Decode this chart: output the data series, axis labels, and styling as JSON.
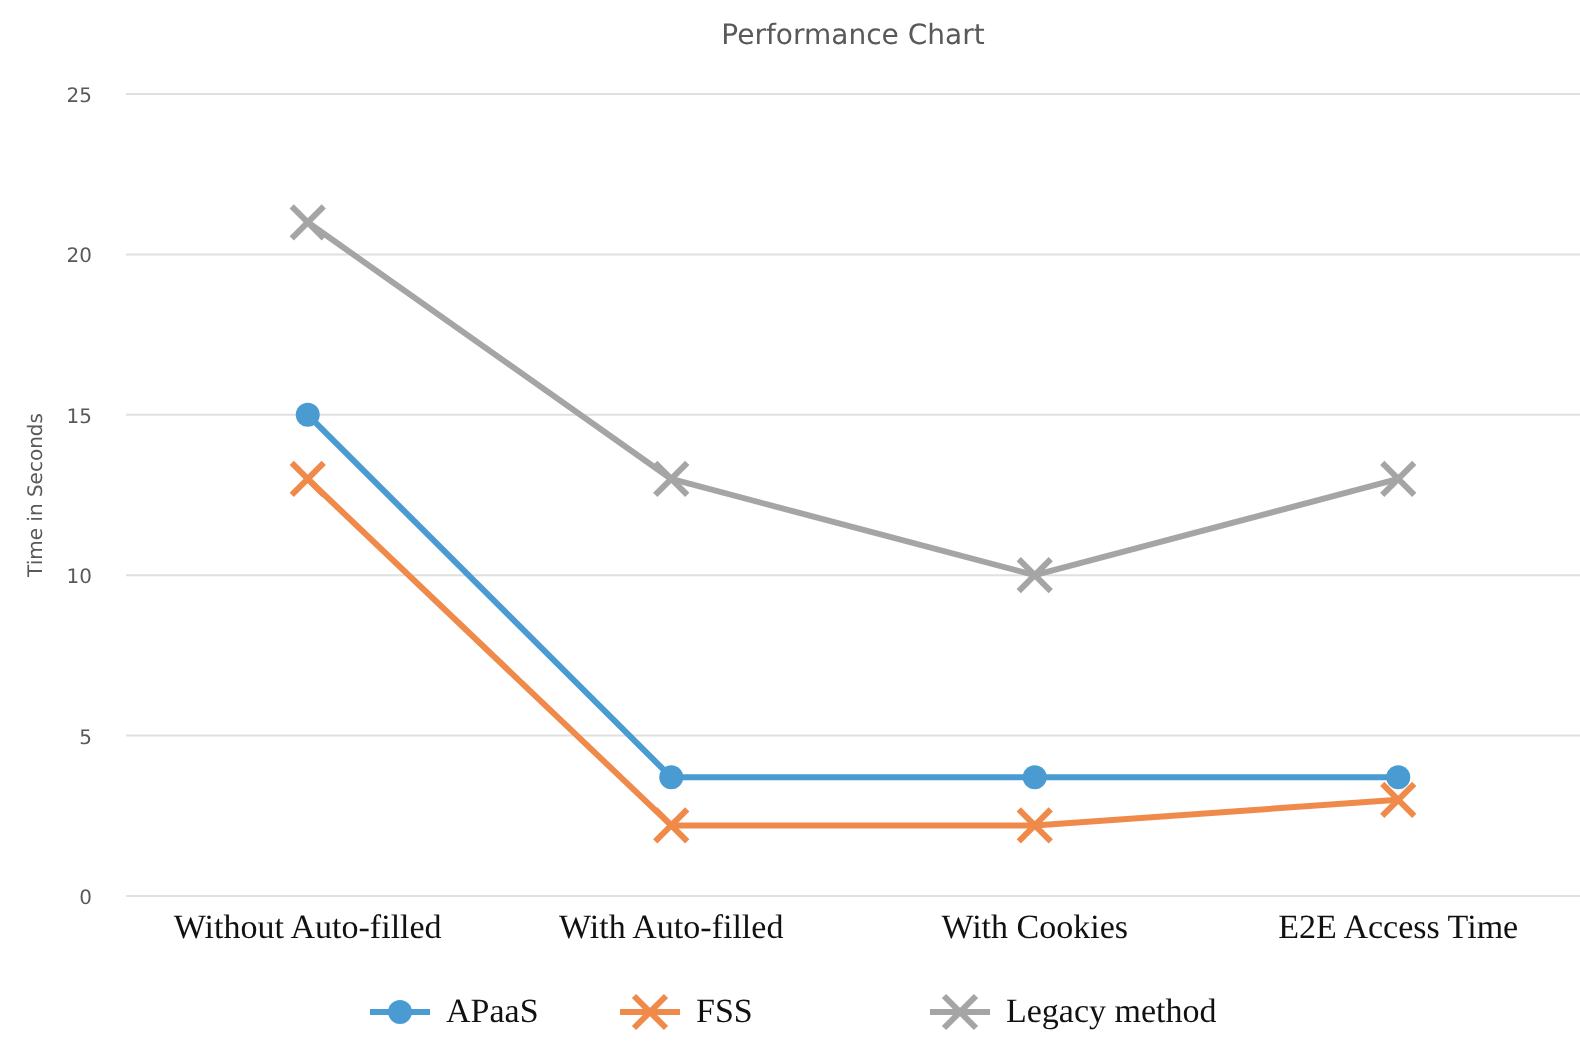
{
  "chart_data": {
    "type": "line",
    "title": "Performance Chart",
    "ylabel": "Time in Seconds",
    "categories": [
      "Without Auto-filled",
      "With Auto-filled",
      "With Cookies",
      "E2E Access Time"
    ],
    "series": [
      {
        "name": "APaaS",
        "color": "#4a9bd1",
        "marker": "circle",
        "values": [
          15,
          3.7,
          3.7,
          3.7
        ]
      },
      {
        "name": "FSS",
        "color": "#ef8a4a",
        "marker": "cross",
        "values": [
          13,
          2.2,
          2.2,
          3
        ]
      },
      {
        "name": "Legacy method",
        "color": "#a5a5a5",
        "marker": "cross",
        "values": [
          21,
          13,
          10,
          13
        ]
      }
    ],
    "ylim": [
      0,
      25
    ],
    "yticks": [
      0,
      5,
      10,
      15,
      20,
      25
    ],
    "grid": "y",
    "legend": "bottom",
    "line_style": "solid"
  }
}
